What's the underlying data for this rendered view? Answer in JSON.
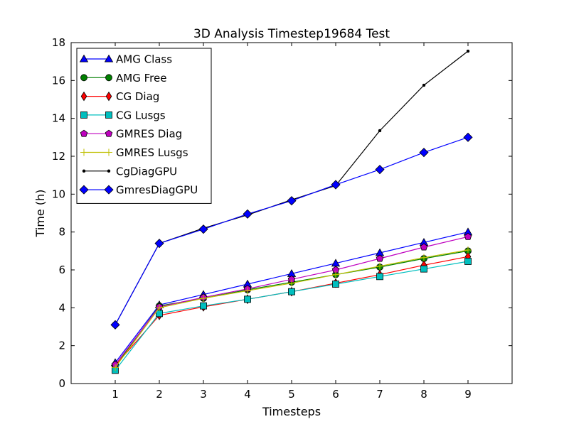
{
  "chart_data": {
    "type": "line",
    "title": "3D Analysis Timestep19684 Test",
    "xlabel": "Timesteps",
    "ylabel": "Time (h)",
    "xlim": [
      0,
      10
    ],
    "ylim": [
      0,
      18
    ],
    "x_ticks": [
      "1",
      "2",
      "3",
      "4",
      "5",
      "6",
      "7",
      "8",
      "9"
    ],
    "y_ticks": [
      "0",
      "2",
      "4",
      "6",
      "8",
      "10",
      "12",
      "14",
      "16",
      "18"
    ],
    "grid": false,
    "legend_position": "top-left",
    "x": [
      1,
      2,
      3,
      4,
      5,
      6,
      7,
      8,
      9
    ],
    "series": [
      {
        "name": "AMG Class",
        "color": "#0000ff",
        "marker": "triangle-up",
        "values": [
          1.1,
          4.15,
          4.7,
          5.25,
          5.8,
          6.35,
          6.9,
          7.45,
          8.0
        ]
      },
      {
        "name": "AMG Free",
        "color": "#008000",
        "marker": "circle",
        "values": [
          0.9,
          4.1,
          4.5,
          4.95,
          5.35,
          5.75,
          6.15,
          6.6,
          7.0
        ]
      },
      {
        "name": "CG Diag",
        "color": "#ff0000",
        "marker": "thin-diamond",
        "values": [
          0.95,
          3.6,
          4.05,
          4.45,
          4.85,
          5.3,
          5.75,
          6.25,
          6.7
        ]
      },
      {
        "name": "CG Lusgs",
        "color": "#00bfbf",
        "marker": "square",
        "values": [
          0.7,
          3.7,
          4.1,
          4.45,
          4.85,
          5.25,
          5.65,
          6.05,
          6.45
        ]
      },
      {
        "name": "GMRES Diag",
        "color": "#bf00bf",
        "marker": "pentagon",
        "values": [
          1.0,
          4.05,
          4.55,
          5.0,
          5.5,
          6.0,
          6.6,
          7.2,
          7.75
        ]
      },
      {
        "name": "GMRES Lusgs",
        "color": "#bfbf00",
        "marker": "plus",
        "values": [
          0.85,
          4.0,
          4.5,
          4.9,
          5.3,
          5.75,
          6.2,
          6.65,
          7.05
        ]
      },
      {
        "name": "CgDiagGPU",
        "color": "#000000",
        "marker": "point",
        "values": [
          3.1,
          7.4,
          8.2,
          8.9,
          9.7,
          10.45,
          13.35,
          15.75,
          17.55
        ]
      },
      {
        "name": "GmresDiagGPU",
        "color": "#0000ff",
        "marker": "diamond",
        "values": [
          3.1,
          7.4,
          8.15,
          8.95,
          9.65,
          10.5,
          11.3,
          12.2,
          13.0
        ]
      }
    ]
  }
}
